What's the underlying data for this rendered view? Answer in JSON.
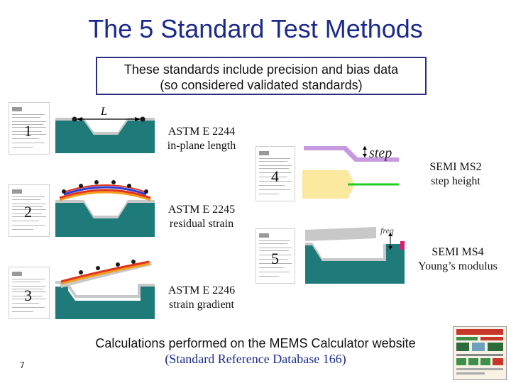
{
  "slide": {
    "title": "The 5 Standard Test Methods",
    "subtitle_line1": "These standards include precision and bias data",
    "subtitle_line2": "(so considered validated standards)",
    "footer_line1": "Calculations performed on the MEMS Calculator website",
    "footer_line2": "(Standard Reference Database 166)",
    "page_number": "7"
  },
  "methods": [
    {
      "number": "1",
      "standard": "ASTM E 2244",
      "measure": "in-plane length",
      "diagram_label": "L"
    },
    {
      "number": "2",
      "standard": "ASTM E 2245",
      "measure": "residual strain"
    },
    {
      "number": "3",
      "standard": "ASTM E 2246",
      "measure": "strain gradient"
    },
    {
      "number": "4",
      "standard": "SEMI MS2",
      "measure": "step height",
      "diagram_label": "step"
    },
    {
      "number": "5",
      "standard": "SEMI MS4",
      "measure": "Young’s modulus",
      "diagram_label": "freq"
    }
  ],
  "colors": {
    "title": "#1b2a8a",
    "substrate": "#1f7a7a",
    "film": "#c8c8c8",
    "purple_layer": "#c79ae0",
    "yellow_layer": "#fbe9a0",
    "green_line": "#22cc22",
    "red_curve": "#e0341d",
    "orange_curve": "#f59c1a",
    "blue_curve": "#2d3bd8",
    "marker": "#e5176f"
  }
}
